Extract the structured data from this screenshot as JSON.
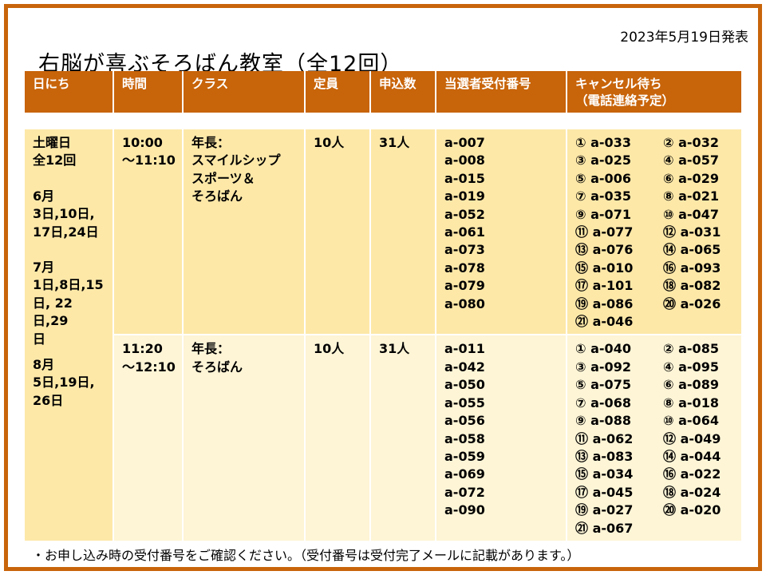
{
  "announcement_date": "2023年5月19日発表",
  "title": "右脳が喜ぶそろばん教室（全12回）",
  "headers": [
    "日にち",
    "時間",
    "クラス",
    "定員",
    "申込数",
    "当選者受付番号",
    "キャンセル待ち",
    "（電話連絡予定）"
  ],
  "days": {
    "line1": "土曜日",
    "line2": "全12回",
    "june_label": "6月",
    "june_dates_1": "3日,10日,",
    "june_dates_2": "17日,24日",
    "july_label": "7月",
    "july_dates_1": "1日,8日,15",
    "july_dates_2": "日, 22日,29",
    "july_dates_3": "日",
    "aug_label": "8月",
    "aug_dates_1": "5日,19日,",
    "aug_dates_2": "26日"
  },
  "sessions": [
    {
      "time_start": "10:00",
      "time_end": "～11:10",
      "class_lines": [
        "年長：",
        "スマイルシップ",
        "スポーツ＆",
        "そろばん"
      ],
      "capacity": "10人",
      "applications": "31人",
      "winners": [
        "a-007",
        "a-008",
        "a-015",
        "a-019",
        "a-052",
        "a-061",
        "a-073",
        "a-078",
        "a-079",
        "a-080"
      ],
      "waitlist": [
        "① a-033",
        "② a-032",
        "③ a-025",
        "④ a-057",
        "⑤ a-006",
        "⑥ a-029",
        "⑦ a-035",
        "⑧ a-021",
        "⑨ a-071",
        "⑩ a-047",
        "⑪ a-077",
        "⑫ a-031",
        "⑬ a-076",
        "⑭ a-065",
        "⑮ a-010",
        "⑯ a-093",
        "⑰ a-101",
        "⑱ a-082",
        "⑲ a-086",
        "⑳ a-026",
        "㉑ a-046"
      ]
    },
    {
      "time_start": "11:20",
      "time_end": "～12:10",
      "class_lines": [
        "年長：",
        "そろばん"
      ],
      "capacity": "10人",
      "applications": "31人",
      "winners": [
        "a-011",
        "a-042",
        "a-050",
        "a-055",
        "a-056",
        "a-058",
        "a-059",
        "a-069",
        "a-072",
        "a-090"
      ],
      "waitlist": [
        "① a-040",
        "② a-085",
        "③ a-092",
        "④ a-095",
        "⑤ a-075",
        "⑥ a-089",
        "⑦ a-068",
        "⑧ a-018",
        "⑨ a-088",
        "⑩ a-064",
        "⑪ a-062",
        "⑫ a-049",
        "⑬ a-083",
        "⑭ a-044",
        "⑮ a-034",
        "⑯ a-022",
        "⑰ a-045",
        "⑱ a-024",
        "⑲ a-027",
        "⑳ a-020",
        "㉑ a-067"
      ]
    }
  ],
  "footnote": "・お申し込み時の受付番号をご確認ください。（受付番号は受付完了メールに記載があります。）",
  "colors": {
    "accent": "#c8640a",
    "row1_bg": "#fde8a8",
    "row2_bg": "#fef5d6"
  }
}
